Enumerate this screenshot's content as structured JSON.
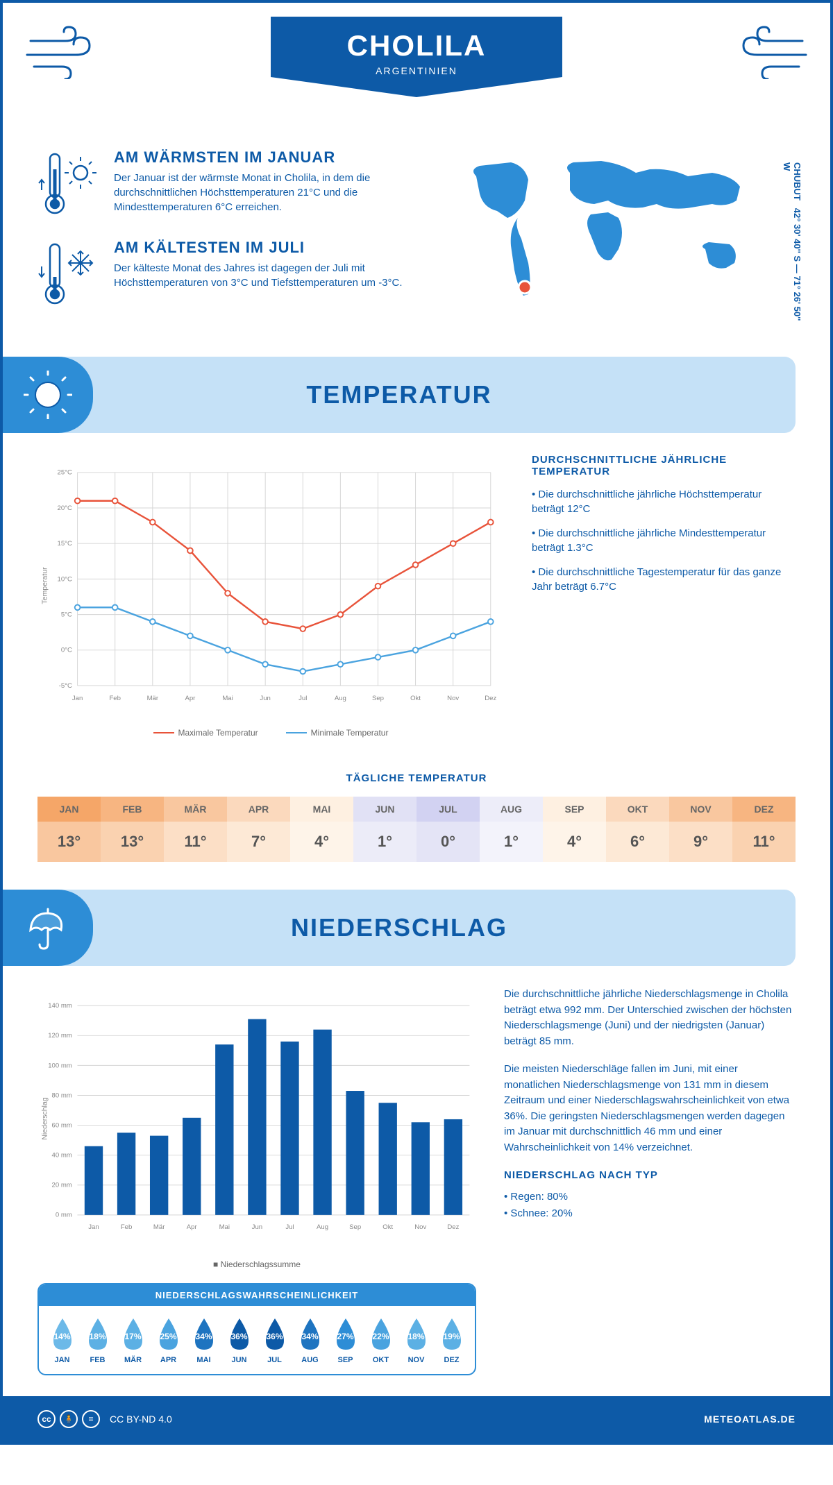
{
  "header": {
    "city": "CHOLILA",
    "country": "ARGENTINIEN"
  },
  "coordinates": "42° 30' 40'' S — 71° 26' 50'' W",
  "region": "CHUBUT",
  "warm": {
    "title": "AM WÄRMSTEN IM JANUAR",
    "text": "Der Januar ist der wärmste Monat in Cholila, in dem die durchschnittlichen Höchsttemperaturen 21°C und die Mindesttemperaturen 6°C erreichen."
  },
  "cold": {
    "title": "AM KÄLTESTEN IM JULI",
    "text": "Der kälteste Monat des Jahres ist dagegen der Juli mit Höchsttemperaturen von 3°C und Tiefsttemperaturen um -3°C."
  },
  "temp_section": "TEMPERATUR",
  "temp_side": {
    "title": "DURCHSCHNITTLICHE JÄHRLICHE TEMPERATUR",
    "b1": "• Die durchschnittliche jährliche Höchsttemperatur beträgt 12°C",
    "b2": "• Die durchschnittliche jährliche Mindesttemperatur beträgt 1.3°C",
    "b3": "• Die durchschnittliche Tagestemperatur für das ganze Jahr beträgt 6.7°C"
  },
  "temp_chart": {
    "months": [
      "Jan",
      "Feb",
      "Mär",
      "Apr",
      "Mai",
      "Jun",
      "Jul",
      "Aug",
      "Sep",
      "Okt",
      "Nov",
      "Dez"
    ],
    "yticks": [
      -5,
      0,
      5,
      10,
      15,
      20,
      25
    ],
    "ylabels": [
      "-5°C",
      "0°C",
      "5°C",
      "10°C",
      "15°C",
      "20°C",
      "25°C"
    ],
    "ylabel": "Temperatur",
    "max": {
      "values": [
        21,
        21,
        18,
        14,
        8,
        4,
        3,
        5,
        9,
        12,
        15,
        18
      ],
      "color": "#e8533a",
      "name": "Maximale Temperatur"
    },
    "min": {
      "values": [
        6,
        6,
        4,
        2,
        0,
        -2,
        -3,
        -2,
        -1,
        0,
        2,
        4
      ],
      "color": "#4aa3df",
      "name": "Minimale Temperatur"
    },
    "grid_color": "#d5d5d5"
  },
  "daily": {
    "title": "TÄGLICHE TEMPERATUR",
    "months": [
      "JAN",
      "FEB",
      "MÄR",
      "APR",
      "MAI",
      "JUN",
      "JUL",
      "AUG",
      "SEP",
      "OKT",
      "NOV",
      "DEZ"
    ],
    "values": [
      "13°",
      "13°",
      "11°",
      "7°",
      "4°",
      "1°",
      "0°",
      "1°",
      "4°",
      "6°",
      "9°",
      "11°"
    ],
    "head_colors": [
      "#f5a668",
      "#f7b581",
      "#f9c79f",
      "#fbd9bd",
      "#fef0e1",
      "#e1e1f5",
      "#d2d2f2",
      "#ededf9",
      "#fef0e1",
      "#fbd9bd",
      "#f9c79f",
      "#f7b581"
    ],
    "val_colors": [
      "#f9c79f",
      "#fad2b0",
      "#fcdfc6",
      "#fde9d6",
      "#fef4e9",
      "#ececf8",
      "#e4e4f6",
      "#f3f3fb",
      "#fef4e9",
      "#fde9d6",
      "#fcdfc6",
      "#fad2b0"
    ]
  },
  "precip_section": "NIEDERSCHLAG",
  "precip_text": {
    "p1": "Die durchschnittliche jährliche Niederschlagsmenge in Cholila beträgt etwa 992 mm. Der Unterschied zwischen der höchsten Niederschlagsmenge (Juni) und der niedrigsten (Januar) beträgt 85 mm.",
    "p2": "Die meisten Niederschläge fallen im Juni, mit einer monatlichen Niederschlagsmenge von 131 mm in diesem Zeitraum und einer Niederschlagswahrscheinlichkeit von etwa 36%. Die geringsten Niederschlagsmengen werden dagegen im Januar mit durchschnittlich 46 mm und einer Wahrscheinlichkeit von 14% verzeichnet.",
    "type_title": "NIEDERSCHLAG NACH TYP",
    "rain": "• Regen: 80%",
    "snow": "• Schnee: 20%"
  },
  "precip_chart": {
    "months": [
      "Jan",
      "Feb",
      "Mär",
      "Apr",
      "Mai",
      "Jun",
      "Jul",
      "Aug",
      "Sep",
      "Okt",
      "Nov",
      "Dez"
    ],
    "values": [
      46,
      55,
      53,
      65,
      114,
      131,
      116,
      124,
      83,
      75,
      62,
      64
    ],
    "yticks": [
      0,
      20,
      40,
      60,
      80,
      100,
      120,
      140
    ],
    "ylabels": [
      "0 mm",
      "20 mm",
      "40 mm",
      "60 mm",
      "80 mm",
      "100 mm",
      "120 mm",
      "140 mm"
    ],
    "ylabel": "Niederschlag",
    "bar_color": "#0d5aa7",
    "grid_color": "#d5d5d5",
    "legend": "Niederschlagssumme"
  },
  "prob": {
    "title": "NIEDERSCHLAGSWAHRSCHEINLICHKEIT",
    "months": [
      "JAN",
      "FEB",
      "MÄR",
      "APR",
      "MAI",
      "JUN",
      "JUL",
      "AUG",
      "SEP",
      "OKT",
      "NOV",
      "DEZ"
    ],
    "values": [
      "14%",
      "18%",
      "17%",
      "25%",
      "34%",
      "36%",
      "36%",
      "34%",
      "27%",
      "22%",
      "18%",
      "19%"
    ],
    "colors": [
      "#6cb9e8",
      "#5cb0e4",
      "#5cb0e4",
      "#4aa3df",
      "#1e74c0",
      "#0d5aa7",
      "#0d5aa7",
      "#1e74c0",
      "#2d8dd6",
      "#4aa3df",
      "#5cb0e4",
      "#5cb0e4"
    ]
  },
  "footer": {
    "license": "CC BY-ND 4.0",
    "site": "METEOATLAS.DE"
  },
  "colors": {
    "primary": "#0d5aa7",
    "secondary": "#2d8dd6",
    "light": "#c5e1f7"
  }
}
